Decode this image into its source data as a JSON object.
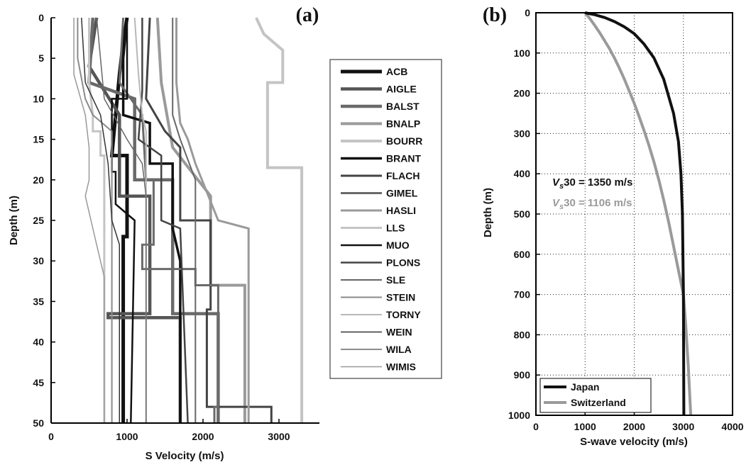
{
  "figure": {
    "panel_a_label": "(a)",
    "panel_b_label": "(b)",
    "colors": {
      "black": "#111111",
      "dark": "#444444",
      "mid": "#6a6a6a",
      "light": "#9a9a9a",
      "pale": "#c4c4c4",
      "axis": "#000000"
    }
  },
  "chart_data": [
    {
      "type": "line",
      "panel": "(a)",
      "xlabel": "S Velocity (m/s)",
      "ylabel": "Depth (m)",
      "xlim": [
        0,
        3500
      ],
      "ylim": [
        50,
        0
      ],
      "y_reversed": true,
      "xticks": [
        "0",
        "1000",
        "2000",
        "3000"
      ],
      "yticks": [
        "0",
        "5",
        "10",
        "15",
        "20",
        "25",
        "30",
        "35",
        "40",
        "45",
        "50"
      ],
      "grid": false,
      "legend_position": "right, outside plot",
      "series": [
        {
          "name": "ACB",
          "color": "#111111",
          "width": 5,
          "points": [
            [
              1000,
              0
            ],
            [
              950,
              3
            ],
            [
              900,
              7
            ],
            [
              850,
              12
            ],
            [
              800,
              17
            ],
            [
              1000,
              17
            ],
            [
              1000,
              27
            ],
            [
              950,
              27
            ],
            [
              950,
              50
            ]
          ]
        },
        {
          "name": "AIGLE",
          "color": "#555555",
          "width": 4.5,
          "points": [
            [
              600,
              0
            ],
            [
              500,
              6
            ],
            [
              900,
              12
            ],
            [
              900,
              22
            ],
            [
              1300,
              22
            ],
            [
              1300,
              36.5
            ],
            [
              750,
              36.5
            ],
            [
              750,
              37
            ],
            [
              1700,
              37
            ],
            [
              1700,
              50
            ]
          ]
        },
        {
          "name": "BALST",
          "color": "#6a6a6a",
          "width": 4.5,
          "points": [
            [
              550,
              0
            ],
            [
              500,
              8
            ],
            [
              1100,
              10
            ],
            [
              1100,
              20
            ],
            [
              1600,
              20
            ],
            [
              1600,
              36.5
            ],
            [
              2200,
              36.5
            ],
            [
              2200,
              48
            ],
            [
              2200,
              50
            ]
          ]
        },
        {
          "name": "BNALP",
          "color": "#9a9a9a",
          "width": 4,
          "points": [
            [
              1400,
              0
            ],
            [
              1450,
              8
            ],
            [
              1600,
              16
            ],
            [
              2100,
              22
            ],
            [
              2100,
              33
            ],
            [
              2550,
              33
            ],
            [
              2550,
              50
            ]
          ]
        },
        {
          "name": "BOURR",
          "color": "#c4c4c4",
          "width": 4,
          "points": [
            [
              2700,
              0
            ],
            [
              2800,
              2
            ],
            [
              3050,
              4
            ],
            [
              3050,
              8
            ],
            [
              2850,
              8
            ],
            [
              2850,
              18.5
            ],
            [
              3300,
              18.5
            ],
            [
              3300,
              50
            ]
          ]
        },
        {
          "name": "BRANT",
          "color": "#111111",
          "width": 3.5,
          "points": [
            [
              1000,
              0
            ],
            [
              950,
              5
            ],
            [
              950,
              12
            ],
            [
              1300,
              13
            ],
            [
              1300,
              18
            ],
            [
              1600,
              18
            ],
            [
              1600,
              26
            ],
            [
              1700,
              30
            ],
            [
              1700,
              50
            ]
          ]
        },
        {
          "name": "FLACH",
          "color": "#444444",
          "width": 3,
          "points": [
            [
              1300,
              0
            ],
            [
              1250,
              10
            ],
            [
              1500,
              14
            ],
            [
              1700,
              16
            ],
            [
              1700,
              25
            ],
            [
              2100,
              25
            ],
            [
              2100,
              36
            ],
            [
              2050,
              36
            ],
            [
              2050,
              48
            ],
            [
              2900,
              48
            ],
            [
              2900,
              50
            ]
          ]
        },
        {
          "name": "GIMEL",
          "color": "#6a6a6a",
          "width": 3,
          "points": [
            [
              950,
              0
            ],
            [
              900,
              8
            ],
            [
              1200,
              12
            ],
            [
              1250,
              20
            ],
            [
              1350,
              20
            ],
            [
              1350,
              28
            ],
            [
              1200,
              28
            ],
            [
              1200,
              31
            ],
            [
              1900,
              31
            ],
            [
              1900,
              33
            ],
            [
              2200,
              33
            ],
            [
              2200,
              48
            ],
            [
              2150,
              48
            ],
            [
              2150,
              50
            ]
          ]
        },
        {
          "name": "HASLI",
          "color": "#9a9a9a",
          "width": 3,
          "points": [
            [
              1650,
              0
            ],
            [
              1650,
              8
            ],
            [
              1700,
              13
            ],
            [
              1800,
              15
            ],
            [
              1900,
              18
            ],
            [
              2200,
              25
            ],
            [
              2600,
              26
            ],
            [
              2600,
              50
            ]
          ]
        },
        {
          "name": "LLS",
          "color": "#c4c4c4",
          "width": 3,
          "points": [
            [
              500,
              0
            ],
            [
              500,
              8
            ],
            [
              550,
              12
            ],
            [
              550,
              14
            ],
            [
              650,
              14
            ],
            [
              650,
              17
            ],
            [
              700,
              17
            ],
            [
              700,
              20
            ],
            [
              700,
              50
            ]
          ]
        },
        {
          "name": "MUO",
          "color": "#111111",
          "width": 2.5,
          "points": [
            [
              1000,
              0
            ],
            [
              1000,
              10
            ],
            [
              800,
              10
            ],
            [
              800,
              19
            ],
            [
              850,
              19
            ],
            [
              850,
              23
            ],
            [
              1100,
              25
            ],
            [
              1050,
              50
            ]
          ]
        },
        {
          "name": "PLONS",
          "color": "#444444",
          "width": 2.5,
          "points": [
            [
              1200,
              0
            ],
            [
              1200,
              9
            ],
            [
              1150,
              15
            ],
            [
              1450,
              17
            ],
            [
              1450,
              25
            ],
            [
              1700,
              26
            ],
            [
              1800,
              50
            ]
          ]
        },
        {
          "name": "SLE",
          "color": "#666666",
          "width": 2,
          "points": [
            [
              1600,
              0
            ],
            [
              1600,
              12
            ],
            [
              1700,
              15
            ],
            [
              1900,
              20
            ],
            [
              1900,
              50
            ]
          ]
        },
        {
          "name": "STEIN",
          "color": "#8a8a8a",
          "width": 2,
          "points": [
            [
              350,
              0
            ],
            [
              350,
              5
            ],
            [
              450,
              10
            ],
            [
              550,
              12
            ],
            [
              800,
              14
            ],
            [
              800,
              50
            ]
          ]
        },
        {
          "name": "TORNY",
          "color": "#b8b8b8",
          "width": 2,
          "points": [
            [
              1100,
              0
            ],
            [
              1150,
              7
            ],
            [
              1200,
              12
            ],
            [
              1250,
              14
            ],
            [
              1250,
              50
            ]
          ]
        },
        {
          "name": "WEIN",
          "color": "#333333",
          "width": 1.5,
          "points": [
            [
              400,
              0
            ],
            [
              450,
              8
            ],
            [
              650,
              12
            ],
            [
              700,
              15
            ],
            [
              750,
              18
            ],
            [
              800,
              25
            ],
            [
              900,
              28
            ],
            [
              900,
              50
            ]
          ]
        },
        {
          "name": "WILA",
          "color": "#666666",
          "width": 1.5,
          "points": [
            [
              600,
              0
            ],
            [
              700,
              10
            ],
            [
              1000,
              15
            ],
            [
              1200,
              18
            ],
            [
              1250,
              22
            ],
            [
              1250,
              50
            ]
          ]
        },
        {
          "name": "WIMIS",
          "color": "#999999",
          "width": 1.5,
          "points": [
            [
              300,
              0
            ],
            [
              300,
              7
            ],
            [
              450,
              12
            ],
            [
              500,
              16
            ],
            [
              500,
              20
            ],
            [
              450,
              22
            ],
            [
              550,
              26
            ],
            [
              700,
              32
            ],
            [
              700,
              50
            ]
          ]
        }
      ]
    },
    {
      "type": "line",
      "panel": "(b)",
      "xlabel": "S-wave velocity (m/s)",
      "ylabel": "Depth (m)",
      "xlim": [
        0,
        4000
      ],
      "ylim": [
        1000,
        0
      ],
      "y_reversed": true,
      "xticks": [
        "0",
        "1000",
        "2000",
        "3000",
        "4000"
      ],
      "yticks": [
        "0",
        "100",
        "200",
        "300",
        "400",
        "500",
        "600",
        "700",
        "800",
        "900",
        "1000"
      ],
      "grid": true,
      "legend_position": "bottom-left",
      "annotations": [
        {
          "text_italic": "V",
          "text_sub": "s",
          "text_rest": "30 = 1350 m/s",
          "color": "#111111",
          "x": 330,
          "y": 420
        },
        {
          "text_italic": "V",
          "text_sub": "s",
          "text_rest": "30 = 1106 m/s",
          "color": "#9a9a9a",
          "x": 330,
          "y": 455
        }
      ],
      "series": [
        {
          "name": "Japan",
          "color": "#111111",
          "width": 4,
          "points": [
            [
              1000,
              0
            ],
            [
              1200,
              5
            ],
            [
              1400,
              12
            ],
            [
              1600,
              22
            ],
            [
              1800,
              35
            ],
            [
              2000,
              52
            ],
            [
              2200,
              78
            ],
            [
              2400,
              112
            ],
            [
              2600,
              165
            ],
            [
              2800,
              250
            ],
            [
              2900,
              320
            ],
            [
              2950,
              400
            ],
            [
              2980,
              500
            ],
            [
              3000,
              700
            ],
            [
              3010,
              1000
            ]
          ]
        },
        {
          "name": "Switzerland",
          "color": "#9a9a9a",
          "width": 4,
          "points": [
            [
              1000,
              0
            ],
            [
              1100,
              15
            ],
            [
              1200,
              32
            ],
            [
              1300,
              50
            ],
            [
              1400,
              70
            ],
            [
              1500,
              90
            ],
            [
              1600,
              113
            ],
            [
              1700,
              138
            ],
            [
              1800,
              165
            ],
            [
              1900,
              195
            ],
            [
              2000,
              225
            ],
            [
              2100,
              258
            ],
            [
              2200,
              293
            ],
            [
              2300,
              330
            ],
            [
              2400,
              370
            ],
            [
              2500,
              415
            ],
            [
              2600,
              465
            ],
            [
              2700,
              520
            ],
            [
              2800,
              580
            ],
            [
              2900,
              640
            ],
            [
              3000,
              700
            ],
            [
              3050,
              780
            ],
            [
              3100,
              880
            ],
            [
              3150,
              1000
            ]
          ]
        }
      ]
    }
  ]
}
